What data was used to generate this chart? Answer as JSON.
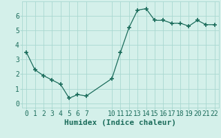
{
  "x": [
    0,
    1,
    2,
    3,
    4,
    5,
    6,
    7,
    10,
    11,
    12,
    13,
    14,
    15,
    16,
    17,
    18,
    19,
    20,
    21,
    22
  ],
  "y": [
    3.5,
    2.3,
    1.9,
    1.6,
    1.3,
    0.35,
    0.6,
    0.5,
    1.7,
    3.5,
    5.2,
    6.4,
    6.5,
    5.7,
    5.7,
    5.5,
    5.5,
    5.3,
    5.7,
    5.4,
    5.4
  ],
  "xticks": [
    0,
    1,
    2,
    3,
    4,
    5,
    6,
    7,
    10,
    11,
    12,
    13,
    14,
    15,
    16,
    17,
    18,
    19,
    20,
    21,
    22
  ],
  "yticks": [
    0,
    1,
    2,
    3,
    4,
    5,
    6
  ],
  "ylim": [
    -0.3,
    7.0
  ],
  "xlim": [
    -0.5,
    22.5
  ],
  "xlabel": "Humidex (Indice chaleur)",
  "line_color": "#1a6b5a",
  "marker": "+",
  "marker_size": 4,
  "bg_color": "#d4f0ea",
  "grid_color": "#a8d8d0",
  "xlabel_color": "#1a6b5a",
  "xlabel_fontsize": 8,
  "tick_fontsize": 7
}
